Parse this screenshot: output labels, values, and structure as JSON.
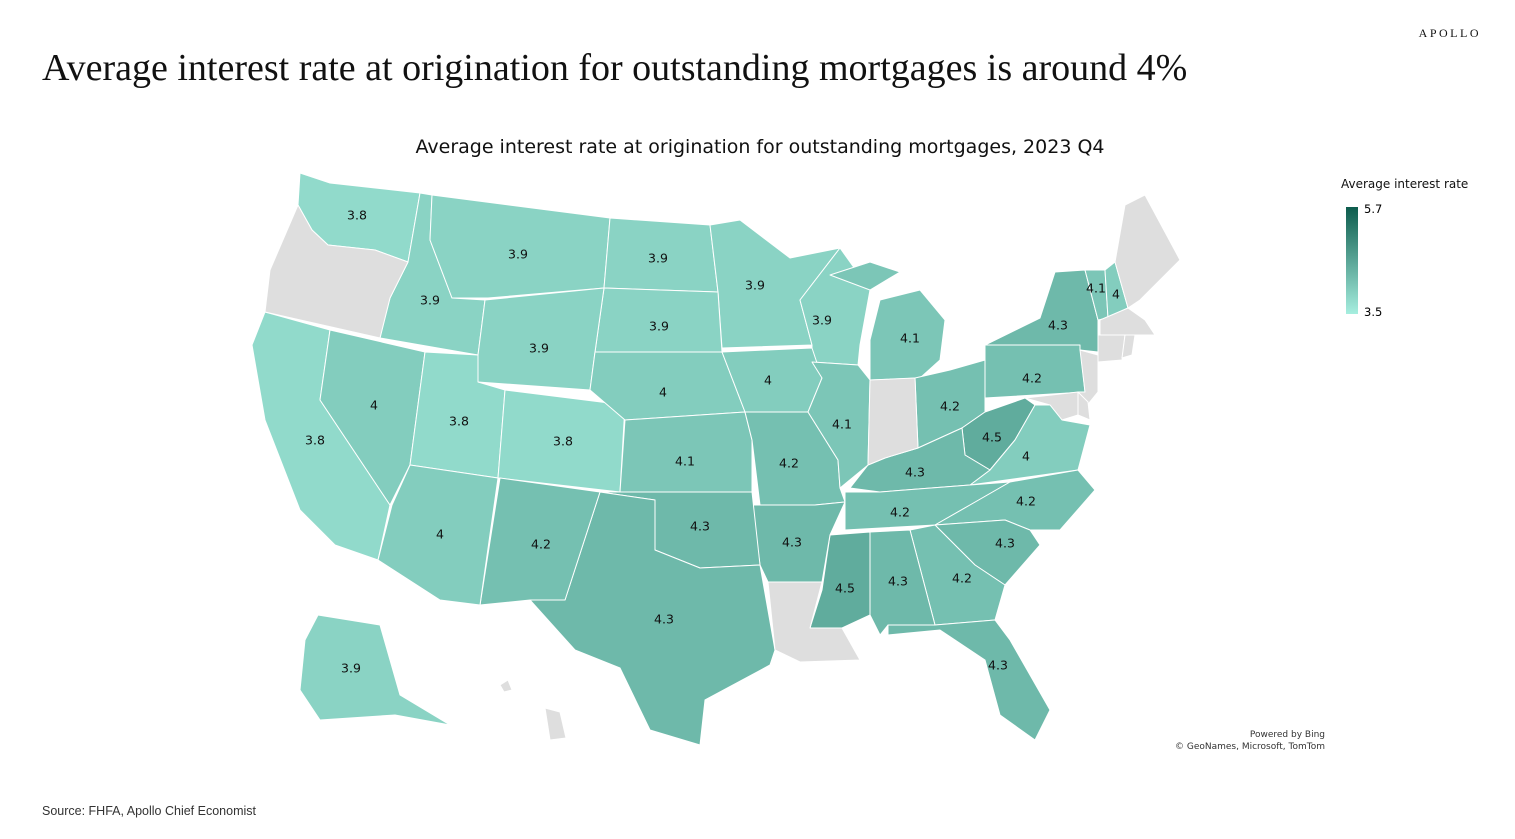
{
  "brand": "APOLLO",
  "headline": "Average interest rate at origination for outstanding mortgages is around 4%",
  "chart_data": {
    "type": "choropleth",
    "title": "Average interest rate at origination for outstanding mortgages, 2023 Q4",
    "legend": {
      "title": "Average interest rate",
      "min": "3.5",
      "max": "5.7",
      "min_value": 3.5,
      "max_value": 5.7,
      "low_color": "#a6eedf",
      "high_color": "#0d5c4d"
    },
    "no_data_color": "#dedede",
    "states": [
      {
        "state": "WA",
        "value": 3.8
      },
      {
        "state": "ID",
        "value": 3.9
      },
      {
        "state": "MT",
        "value": 3.9
      },
      {
        "state": "ND",
        "value": 3.9
      },
      {
        "state": "MN",
        "value": 3.9
      },
      {
        "state": "SD",
        "value": 3.9
      },
      {
        "state": "WY",
        "value": 3.9
      },
      {
        "state": "WI",
        "value": 3.9
      },
      {
        "state": "CA",
        "value": 3.8
      },
      {
        "state": "NV",
        "value": 4
      },
      {
        "state": "UT",
        "value": 3.8
      },
      {
        "state": "CO",
        "value": 3.8
      },
      {
        "state": "NE",
        "value": 4
      },
      {
        "state": "IA",
        "value": 4
      },
      {
        "state": "KS",
        "value": 4.1
      },
      {
        "state": "MO",
        "value": 4.2
      },
      {
        "state": "IL",
        "value": 4.1
      },
      {
        "state": "MI",
        "value": 4.1
      },
      {
        "state": "OH",
        "value": 4.2
      },
      {
        "state": "PA",
        "value": 4.2
      },
      {
        "state": "NY",
        "value": 4.3
      },
      {
        "state": "VT",
        "value": 4.1
      },
      {
        "state": "NH",
        "value": 4
      },
      {
        "state": "MA",
        "value": null
      },
      {
        "state": "CT",
        "value": null
      },
      {
        "state": "RI",
        "value": null
      },
      {
        "state": "NJ",
        "value": null
      },
      {
        "state": "DE",
        "value": null
      },
      {
        "state": "MD",
        "value": null
      },
      {
        "state": "WV",
        "value": 4.5
      },
      {
        "state": "VA",
        "value": 4
      },
      {
        "state": "KY",
        "value": 4.3
      },
      {
        "state": "TN",
        "value": 4.2
      },
      {
        "state": "NC",
        "value": 4.2
      },
      {
        "state": "SC",
        "value": 4.3
      },
      {
        "state": "GA",
        "value": 4.2
      },
      {
        "state": "AL",
        "value": 4.3
      },
      {
        "state": "MS",
        "value": 4.5
      },
      {
        "state": "AR",
        "value": 4.3
      },
      {
        "state": "OK",
        "value": 4.3
      },
      {
        "state": "TX",
        "value": 4.3
      },
      {
        "state": "NM",
        "value": 4.2
      },
      {
        "state": "AZ",
        "value": 4
      },
      {
        "state": "FL",
        "value": 4.3
      },
      {
        "state": "AK",
        "value": 3.9
      },
      {
        "state": "OR",
        "value": null
      },
      {
        "state": "IN",
        "value": null
      },
      {
        "state": "LA",
        "value": null
      },
      {
        "state": "ME",
        "value": null
      },
      {
        "state": "HI",
        "value": null
      }
    ]
  },
  "credit": {
    "line1": "Powered by Bing",
    "line2": "© GeoNames, Microsoft, TomTom"
  },
  "source": "Source: FHFA, Apollo Chief Economist"
}
